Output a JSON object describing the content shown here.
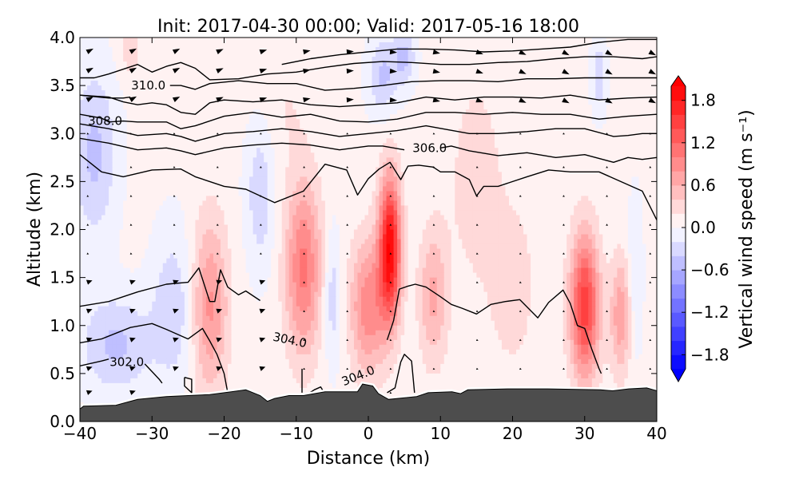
{
  "chart_data": {
    "type": "contourf",
    "title": "Init: 2017-04-30 00:00; Valid: 2017-05-16 18:00",
    "xlabel": "Distance (km)",
    "ylabel": "Altitude (km)",
    "xlim": [
      -40,
      40
    ],
    "ylim": [
      0.0,
      4.0
    ],
    "xticks": [
      -40,
      -30,
      -20,
      -10,
      0,
      10,
      20,
      30,
      40
    ],
    "xtick_labels": [
      "−40",
      "−30",
      "−20",
      "−10",
      "0",
      "10",
      "20",
      "30",
      "40"
    ],
    "yticks": [
      0.0,
      0.5,
      1.0,
      1.5,
      2.0,
      2.5,
      3.0,
      3.5,
      4.0
    ],
    "ytick_labels": [
      "0.0",
      "0.5",
      "1.0",
      "1.5",
      "2.0",
      "2.5",
      "3.0",
      "3.5",
      "4.0"
    ],
    "colorbar": {
      "label": "Vertical wind speed (m s⁻¹)",
      "range": [
        -2.0,
        2.0
      ],
      "step": 0.2,
      "extend": "both",
      "ticks": [
        1.8,
        1.2,
        0.6,
        0.0,
        -0.6,
        -1.2,
        -1.8
      ],
      "tick_labels": [
        "1.8",
        "1.2",
        "0.6",
        "0.0",
        "−0.6",
        "−1.2",
        "−1.8"
      ],
      "cmap": "bwr",
      "low_color": "#0000ff",
      "mid_color": "#ffffff",
      "high_color": "#ff0000"
    },
    "vertical_wind_features": [
      {
        "x": -22,
        "y": 1.2,
        "w": 0.8,
        "sx": 2.5,
        "sy": 0.9
      },
      {
        "x": -9,
        "y": 1.6,
        "w": 1.0,
        "sx": 2.5,
        "sy": 0.9
      },
      {
        "x": 3,
        "y": 1.8,
        "w": 1.9,
        "sx": 1.5,
        "sy": 0.75
      },
      {
        "x": 0,
        "y": 1.2,
        "w": 0.9,
        "sx": 2.5,
        "sy": 0.7
      },
      {
        "x": 9,
        "y": 1.3,
        "w": 0.6,
        "sx": 2.0,
        "sy": 0.7
      },
      {
        "x": 20,
        "y": 1.4,
        "w": 0.3,
        "sx": 3.0,
        "sy": 0.8
      },
      {
        "x": 30,
        "y": 1.2,
        "w": 1.5,
        "sx": 2.0,
        "sy": 0.75
      },
      {
        "x": 35,
        "y": 1.1,
        "w": 0.7,
        "sx": 1.5,
        "sy": 0.6
      },
      {
        "x": -38,
        "y": 2.8,
        "w": -0.5,
        "sx": 3.0,
        "sy": 0.9
      },
      {
        "x": -35,
        "y": 0.8,
        "w": -0.5,
        "sx": 5.0,
        "sy": 0.5
      },
      {
        "x": -27,
        "y": 1.2,
        "w": -0.4,
        "sx": 3.0,
        "sy": 0.8
      },
      {
        "x": -15,
        "y": 2.4,
        "w": -0.4,
        "sx": 2.0,
        "sy": 0.8
      },
      {
        "x": -5,
        "y": 1.3,
        "w": -0.4,
        "sx": 1.2,
        "sy": 0.7
      },
      {
        "x": 2,
        "y": 3.6,
        "w": -0.5,
        "sx": 2.0,
        "sy": 0.4
      },
      {
        "x": 5,
        "y": 3.8,
        "w": -0.5,
        "sx": 1.5,
        "sy": 0.3
      },
      {
        "x": 37,
        "y": 1.5,
        "w": -0.3,
        "sx": 1.0,
        "sy": 0.8
      },
      {
        "x": 32,
        "y": 3.6,
        "w": -0.4,
        "sx": 1.0,
        "sy": 0.4
      },
      {
        "x": 15,
        "y": 2.5,
        "w": 0.25,
        "sx": 4.0,
        "sy": 1.2
      },
      {
        "x": -33,
        "y": 3.9,
        "w": 0.3,
        "sx": 1.5,
        "sy": 0.3
      },
      {
        "x": -12,
        "y": 3.3,
        "w": 0.15,
        "sx": 4.0,
        "sy": 0.6
      }
    ],
    "terrain": {
      "x": [
        -40,
        -39.5,
        -35,
        -32,
        -28,
        -25,
        -22,
        -19,
        -17,
        -15,
        -14,
        -13,
        -11,
        -9,
        -6,
        -2,
        -1.5,
        -0.8,
        0.6,
        1.4,
        2.8,
        6.7,
        8.3,
        11.6,
        12.8,
        13.8,
        19.3,
        24.9,
        32.2,
        33.9,
        36.1,
        38.6,
        40
      ],
      "y": [
        0.13,
        0.16,
        0.17,
        0.23,
        0.26,
        0.27,
        0.28,
        0.31,
        0.33,
        0.27,
        0.21,
        0.24,
        0.27,
        0.27,
        0.31,
        0.31,
        0.31,
        0.39,
        0.37,
        0.29,
        0.23,
        0.26,
        0.3,
        0.31,
        0.29,
        0.33,
        0.34,
        0.34,
        0.33,
        0.32,
        0.34,
        0.35,
        0.32
      ]
    },
    "theta_contours": [
      {
        "level": 302.0,
        "label": "302.0",
        "x": [
          -40,
          -37,
          -36
        ],
        "y": [
          0.58,
          0.63,
          0.65
        ]
      },
      {
        "level": 302.0,
        "label": "",
        "x": [
          -31,
          -30,
          -29,
          -28.6
        ],
        "y": [
          0.6,
          0.52,
          0.44,
          0.4
        ]
      },
      {
        "level": 302.0,
        "label": "",
        "x": [
          -25.5,
          -24.5,
          -24.5,
          -25.5,
          -25.5
        ],
        "y": [
          0.46,
          0.44,
          0.3,
          0.37,
          0.46
        ]
      },
      {
        "level": 303.0,
        "label": "",
        "x": [
          -40,
          -37,
          -33,
          -30,
          -28,
          -25,
          -23,
          -22,
          -21,
          -20,
          -19.5
        ],
        "y": [
          0.82,
          0.86,
          0.98,
          1.02,
          0.96,
          0.86,
          0.97,
          0.84,
          0.7,
          0.5,
          0.3
        ]
      },
      {
        "level": 304.0,
        "label": "304.0",
        "x": [
          -40,
          -36,
          -32,
          -28,
          -25,
          -23.5,
          -22,
          -21.3,
          -20.5,
          -19.5,
          -18,
          -17,
          -15
        ],
        "y": [
          1.2,
          1.25,
          1.35,
          1.43,
          1.45,
          1.6,
          1.25,
          1.25,
          1.58,
          1.4,
          1.32,
          1.36,
          1.26
        ]
      },
      {
        "level": 304.0,
        "label": "",
        "x": [
          -9.2,
          -9.2
        ],
        "y": [
          0.55,
          0.3
        ]
      },
      {
        "level": 304.0,
        "label": "304.0",
        "x": [
          2.6,
          3.7,
          4.5,
          5.0,
          6.0,
          6.4
        ],
        "y": [
          0.3,
          0.35,
          0.62,
          0.7,
          0.63,
          0.3
        ]
      },
      {
        "level": 304.0,
        "label": "",
        "x": [
          2.6,
          3.5,
          4.3,
          5.5,
          6.5,
          8,
          10,
          11.5,
          13,
          15,
          17,
          19,
          21,
          23.5,
          25,
          27,
          28,
          29,
          30,
          31,
          32,
          32.3
        ],
        "y": [
          0.85,
          1.05,
          1.38,
          1.41,
          1.43,
          1.4,
          1.3,
          1.22,
          1.18,
          1.12,
          1.22,
          1.25,
          1.27,
          1.08,
          1.24,
          1.37,
          1.23,
          1.0,
          0.97,
          0.75,
          0.55,
          0.5
        ]
      },
      {
        "level": 304.0,
        "label": "",
        "x": [
          -8.3,
          -7.5,
          -6.6,
          -5.9
        ],
        "y": [
          0.29,
          0.33,
          0.36,
          0.27
        ]
      },
      {
        "level": 305.0,
        "label": "",
        "x": [
          -40,
          -37,
          -34,
          -30,
          -26,
          -24,
          -20,
          -17,
          -13,
          -9,
          -6,
          -3,
          -1.5,
          0,
          1.5,
          3.0,
          4.5,
          5.5,
          7,
          9,
          10,
          12,
          14,
          15,
          16,
          18,
          22,
          25,
          28,
          32,
          35,
          38,
          40
        ],
        "y": [
          2.78,
          2.6,
          2.55,
          2.62,
          2.63,
          2.55,
          2.45,
          2.42,
          2.28,
          2.4,
          2.68,
          2.62,
          2.36,
          2.53,
          2.63,
          2.7,
          2.52,
          2.66,
          2.67,
          2.65,
          2.6,
          2.6,
          2.52,
          2.35,
          2.45,
          2.45,
          2.55,
          2.62,
          2.6,
          2.6,
          2.5,
          2.4,
          2.1
        ]
      },
      {
        "level": 306.0,
        "label": "306.0",
        "x": [
          -40,
          -36,
          -32,
          -28,
          -26,
          -24,
          -20,
          -16,
          -12,
          -8,
          -4,
          0,
          2,
          3.5,
          5
        ],
        "y": [
          2.95,
          2.9,
          2.83,
          2.85,
          2.82,
          2.78,
          2.85,
          2.88,
          2.9,
          2.88,
          2.83,
          2.87,
          2.87,
          2.85,
          2.83
        ]
      },
      {
        "level": 306.0,
        "label": "",
        "x": [
          10,
          11.5,
          14,
          18,
          22,
          26,
          30,
          34,
          36,
          38,
          40
        ],
        "y": [
          2.85,
          2.87,
          2.82,
          2.77,
          2.8,
          2.75,
          2.78,
          2.7,
          2.75,
          2.73,
          2.75
        ]
      },
      {
        "level": 307.0,
        "label": "",
        "x": [
          -40,
          -36,
          -32,
          -28,
          -26,
          -24,
          -20,
          -16,
          -12,
          -8,
          -4,
          0,
          4,
          8,
          11,
          14,
          18,
          22,
          26,
          30,
          34,
          36,
          38,
          40
        ],
        "y": [
          3.1,
          3.05,
          2.98,
          3.0,
          2.97,
          2.92,
          3.0,
          3.02,
          3.05,
          3.02,
          2.97,
          3.0,
          3.03,
          3.08,
          3.04,
          3.0,
          3.0,
          3.02,
          3.05,
          3.05,
          2.97,
          2.98,
          3.0,
          3.0
        ]
      },
      {
        "level": 308.0,
        "label": "308.0",
        "x": [
          -40,
          -37,
          -36,
          -34,
          -32,
          -28,
          -26,
          -24,
          -20,
          -16,
          -12,
          -8,
          -4,
          0,
          4,
          8,
          12,
          16,
          20,
          24,
          28,
          32,
          36,
          40
        ],
        "y": [
          3.2,
          3.16,
          3.12,
          3.13,
          3.12,
          3.12,
          3.05,
          3.08,
          3.18,
          3.22,
          3.17,
          3.2,
          3.13,
          3.12,
          3.15,
          3.22,
          3.22,
          3.2,
          3.22,
          3.2,
          3.2,
          3.15,
          3.18,
          3.2
        ]
      },
      {
        "level": 309.0,
        "label": "",
        "x": [
          -40,
          -36,
          -34,
          -32,
          -30,
          -28,
          -26,
          -24,
          -22,
          -20,
          -16,
          -12,
          -8,
          -4,
          0,
          4,
          8,
          12,
          16,
          20,
          24,
          28,
          32,
          36,
          40
        ],
        "y": [
          3.4,
          3.38,
          3.33,
          3.3,
          3.32,
          3.3,
          3.22,
          3.2,
          3.32,
          3.35,
          3.33,
          3.35,
          3.3,
          3.28,
          3.3,
          3.32,
          3.38,
          3.35,
          3.38,
          3.38,
          3.37,
          3.4,
          3.35,
          3.37,
          3.38
        ]
      },
      {
        "level": 310.0,
        "label": "310.0",
        "x": [
          -40,
          -36,
          -34,
          -33
        ],
        "y": [
          3.4,
          3.37,
          3.37,
          3.38
        ]
      },
      {
        "level": 310.0,
        "label": "",
        "x": [
          -27.5,
          -26,
          -24,
          -22,
          -18,
          -14,
          -10,
          -6,
          -2,
          2,
          6,
          10,
          14,
          18,
          22,
          26,
          30,
          34,
          38,
          40
        ],
        "y": [
          3.5,
          3.5,
          3.46,
          3.52,
          3.55,
          3.52,
          3.52,
          3.45,
          3.47,
          3.5,
          3.54,
          3.55,
          3.55,
          3.54,
          3.57,
          3.57,
          3.58,
          3.58,
          3.58,
          3.58
        ]
      },
      {
        "level": 311.0,
        "label": "",
        "x": [
          -40,
          -38,
          -36,
          -34,
          -32,
          -30,
          -28,
          -26,
          -24,
          -22,
          -18,
          -14,
          -10,
          -6,
          -2,
          2,
          6,
          10,
          14,
          18,
          22,
          26,
          30,
          34,
          38,
          40
        ],
        "y": [
          3.58,
          3.58,
          3.62,
          3.67,
          3.72,
          3.64,
          3.7,
          3.74,
          3.68,
          3.56,
          3.57,
          3.62,
          3.64,
          3.69,
          3.73,
          3.75,
          3.74,
          3.72,
          3.72,
          3.74,
          3.75,
          3.78,
          3.8,
          3.8,
          3.78,
          3.8
        ]
      },
      {
        "level": 312.0,
        "label": "",
        "x": [
          -12,
          -8,
          -4,
          0,
          4,
          8,
          12,
          16,
          20,
          24,
          28,
          32,
          36,
          40
        ],
        "y": [
          3.72,
          3.78,
          3.82,
          3.85,
          3.88,
          3.88,
          3.87,
          3.85,
          3.86,
          3.88,
          3.9,
          3.95,
          3.98,
          3.98
        ]
      }
    ],
    "wind_vectors": {
      "x": [
        -39,
        -33,
        -27,
        -21,
        -15,
        -9,
        -3,
        3,
        9,
        15,
        21,
        27,
        33,
        39
      ],
      "y": [
        0.3,
        0.55,
        0.85,
        1.15,
        1.45,
        1.75,
        2.05,
        2.35,
        2.65,
        3.0,
        3.35,
        3.65,
        3.85
      ]
    }
  }
}
